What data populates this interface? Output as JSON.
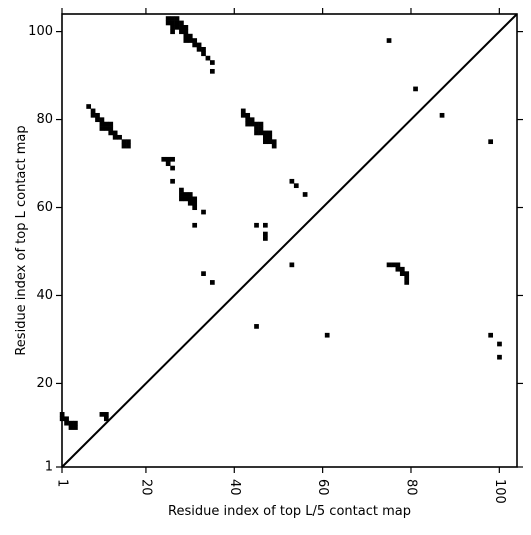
{
  "chart_data": {
    "type": "heatmap",
    "title": "",
    "xlabel": "Residue index of top L/5 contact map",
    "ylabel": "Residue index of top L contact map",
    "xlim": [
      1,
      104
    ],
    "ylim": [
      1,
      104
    ],
    "x_ticks": [
      "1",
      "20",
      "40",
      "60",
      "80",
      "100"
    ],
    "y_ticks": [
      "1",
      "20",
      "40",
      "60",
      "80",
      "100"
    ],
    "x_tick_values": [
      1,
      20,
      40,
      60,
      80,
      100
    ],
    "y_tick_values": [
      1,
      20,
      40,
      60,
      80,
      100
    ],
    "x_tick_rotation": -90,
    "diagonal": true,
    "grid": false,
    "legend": "none",
    "colors": {
      "contact": "#000000",
      "background": "#ffffff",
      "diagonal": "#000000"
    },
    "upper_triangle_contacts": [
      [
        25,
        103
      ],
      [
        26,
        103
      ],
      [
        27,
        103
      ],
      [
        25,
        102
      ],
      [
        26,
        102
      ],
      [
        27,
        102
      ],
      [
        28,
        102
      ],
      [
        26,
        101
      ],
      [
        27,
        101
      ],
      [
        28,
        101
      ],
      [
        29,
        101
      ],
      [
        26,
        100
      ],
      [
        28,
        100
      ],
      [
        29,
        100
      ],
      [
        29,
        99
      ],
      [
        30,
        99
      ],
      [
        29,
        98
      ],
      [
        30,
        98
      ],
      [
        31,
        98
      ],
      [
        31,
        97
      ],
      [
        32,
        97
      ],
      [
        32,
        96
      ],
      [
        33,
        96
      ],
      [
        33,
        95
      ],
      [
        34,
        94
      ],
      [
        35,
        93
      ],
      [
        35,
        91
      ],
      [
        7,
        83
      ],
      [
        8,
        82
      ],
      [
        8,
        81
      ],
      [
        9,
        81
      ],
      [
        9,
        80
      ],
      [
        10,
        80
      ],
      [
        10,
        79
      ],
      [
        11,
        79
      ],
      [
        12,
        79
      ],
      [
        10,
        78
      ],
      [
        11,
        78
      ],
      [
        12,
        78
      ],
      [
        12,
        77
      ],
      [
        13,
        77
      ],
      [
        13,
        76
      ],
      [
        14,
        76
      ],
      [
        15,
        75
      ],
      [
        16,
        75
      ],
      [
        15,
        74
      ],
      [
        16,
        74
      ],
      [
        42,
        82
      ],
      [
        42,
        81
      ],
      [
        43,
        81
      ],
      [
        43,
        80
      ],
      [
        44,
        80
      ],
      [
        43,
        79
      ],
      [
        44,
        79
      ],
      [
        45,
        79
      ],
      [
        46,
        79
      ],
      [
        45,
        78
      ],
      [
        46,
        78
      ],
      [
        45,
        77
      ],
      [
        46,
        77
      ],
      [
        47,
        77
      ],
      [
        48,
        77
      ],
      [
        47,
        76
      ],
      [
        48,
        76
      ],
      [
        47,
        75
      ],
      [
        48,
        75
      ],
      [
        49,
        75
      ],
      [
        49,
        74
      ],
      [
        24,
        71
      ],
      [
        25,
        71
      ],
      [
        26,
        71
      ],
      [
        25,
        70
      ],
      [
        26,
        69
      ],
      [
        26,
        66
      ],
      [
        53,
        66
      ],
      [
        54,
        65
      ],
      [
        56,
        63
      ],
      [
        28,
        64
      ],
      [
        28,
        63
      ],
      [
        29,
        63
      ],
      [
        30,
        63
      ],
      [
        28,
        62
      ],
      [
        29,
        62
      ],
      [
        30,
        62
      ],
      [
        31,
        62
      ],
      [
        30,
        61
      ],
      [
        31,
        61
      ],
      [
        31,
        60
      ],
      [
        33,
        59
      ],
      [
        31,
        56
      ],
      [
        45,
        56
      ],
      [
        47,
        56
      ],
      [
        47,
        54
      ],
      [
        47,
        53
      ],
      [
        53,
        47
      ],
      [
        33,
        45
      ],
      [
        35,
        43
      ],
      [
        45,
        33
      ],
      [
        75,
        98
      ],
      [
        81,
        87
      ],
      [
        87,
        81
      ],
      [
        98,
        75
      ]
    ],
    "lower_triangle_contacts": [
      [
        75,
        47
      ],
      [
        76,
        47
      ],
      [
        77,
        47
      ],
      [
        77,
        46
      ],
      [
        78,
        46
      ],
      [
        78,
        45
      ],
      [
        79,
        45
      ],
      [
        79,
        44
      ],
      [
        79,
        43
      ],
      [
        61,
        31
      ],
      [
        98,
        31
      ],
      [
        100,
        29
      ],
      [
        100,
        26
      ],
      [
        1,
        13
      ],
      [
        1,
        12
      ],
      [
        2,
        12
      ],
      [
        2,
        11
      ],
      [
        3,
        11
      ],
      [
        4,
        11
      ],
      [
        3,
        10
      ],
      [
        4,
        10
      ],
      [
        10,
        13
      ],
      [
        11,
        13
      ],
      [
        11,
        12
      ]
    ]
  }
}
